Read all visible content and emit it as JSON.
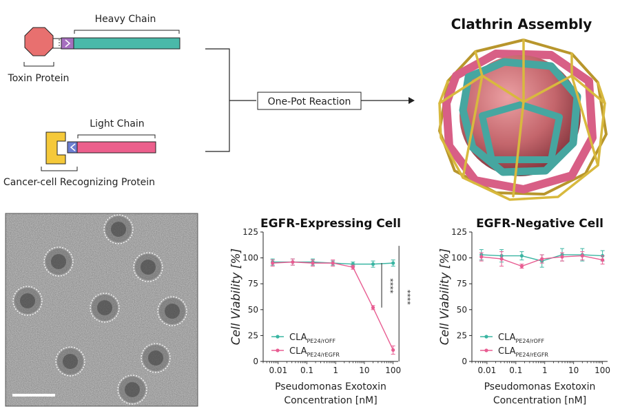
{
  "schematic": {
    "heavy_chain_label": "Heavy Chain",
    "toxin_label": "Toxin Protein",
    "light_chain_label": "Light Chain",
    "recognizing_label": "Cancer-cell Recognizing Protein",
    "reaction_label": "One-Pot Reaction",
    "assembly_title": "Clathrin Assembly",
    "colors": {
      "toxin": "#e8706f",
      "heavy": "#4ab9a9",
      "light": "#ec5f8c",
      "recognizer": "#f5c93a",
      "linker_heavy": "#a66fbf",
      "linker_light": "#6d7fd1",
      "cage_gold": "#d8b93e",
      "cage_pink": "#d85f86",
      "cage_teal": "#46a6a0",
      "sphere": "#c96a70"
    }
  },
  "micrograph": {
    "description_icon": "tem-micrograph-icon"
  },
  "chart_data": [
    {
      "type": "line",
      "title": "EGFR-Expressing Cell",
      "xlabel_line1": "Pseudomonas Exotoxin",
      "xlabel_line2": "Concentration [nM]",
      "ylabel": "Cell Viability [%]",
      "x": [
        0.0064,
        0.032,
        0.16,
        0.8,
        4,
        20,
        100
      ],
      "x_ticks": [
        "0.01",
        "0.1",
        "1",
        "10",
        "100"
      ],
      "y_ticks": [
        "0",
        "25",
        "50",
        "75",
        "100",
        "125"
      ],
      "ylim": [
        0,
        125
      ],
      "series": [
        {
          "label_main": "CLA",
          "label_sub": "PE24/rOFF",
          "color": "#3ab5a2",
          "values": [
            96,
            96,
            96,
            95,
            94,
            94,
            95
          ],
          "errors": [
            3,
            3,
            3,
            2,
            2,
            3,
            3
          ]
        },
        {
          "label_main": "CLA",
          "label_sub": "PE24/rEGFR",
          "color": "#e85d92",
          "values": [
            95,
            96,
            95,
            95,
            91,
            52,
            11
          ],
          "errors": [
            3,
            3,
            3,
            3,
            2,
            2,
            4
          ]
        }
      ],
      "significance": [
        "****",
        "****"
      ]
    },
    {
      "type": "line",
      "title": "EGFR-Negative Cell",
      "xlabel_line1": "Pseudomonas Exotoxin",
      "xlabel_line2": "Concentration [nM]",
      "ylabel": "Cell Viability [%]",
      "x": [
        0.0064,
        0.032,
        0.16,
        0.8,
        4,
        20,
        100
      ],
      "x_ticks": [
        "0.01",
        "0.1",
        "1",
        "10",
        "100"
      ],
      "y_ticks": [
        "0",
        "25",
        "50",
        "75",
        "100",
        "125"
      ],
      "ylim": [
        0,
        125
      ],
      "series": [
        {
          "label_main": "CLA",
          "label_sub": "PE24/rOFF",
          "color": "#3ab5a2",
          "values": [
            103,
            102,
            102,
            97,
            103,
            103,
            102
          ],
          "errors": [
            5,
            6,
            4,
            6,
            6,
            6,
            5
          ]
        },
        {
          "label_main": "CLA",
          "label_sub": "PE24/rEGFR",
          "color": "#e85d92",
          "values": [
            101,
            99,
            92,
            99,
            101,
            102,
            98
          ],
          "errors": [
            4,
            7,
            2,
            4,
            4,
            4,
            4
          ]
        }
      ]
    }
  ]
}
